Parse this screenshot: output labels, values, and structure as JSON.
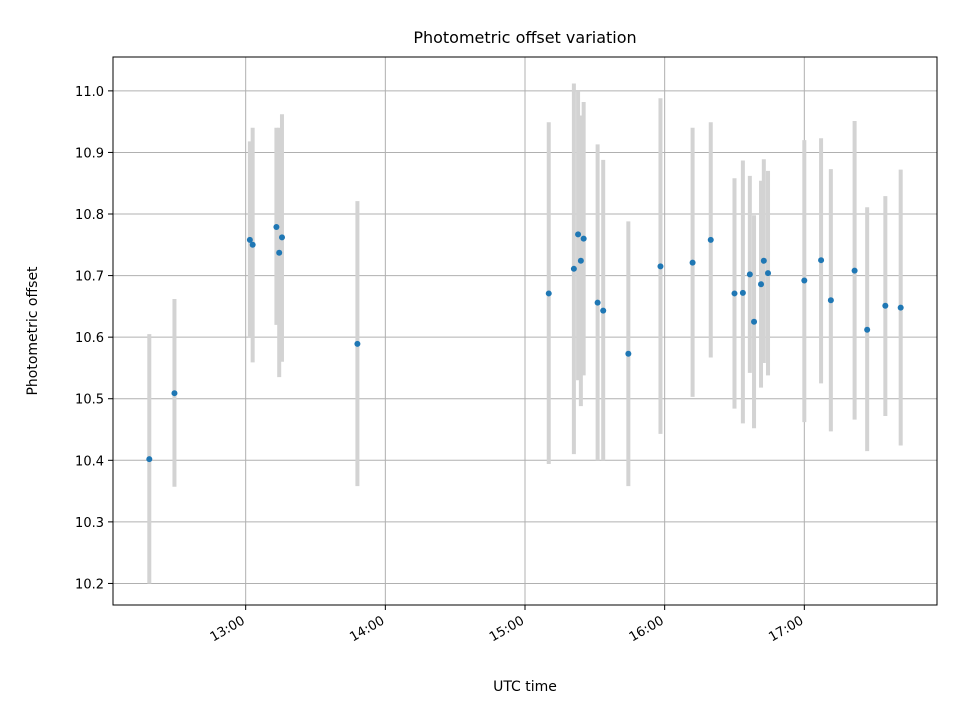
{
  "chart_data": {
    "type": "scatter",
    "title": "Photometric offset variation",
    "xlabel": "UTC time",
    "ylabel": "Photometric offset",
    "grid": true,
    "x_unit": "hours (UTC)",
    "xlim": [
      12.05,
      17.95
    ],
    "ylim": [
      10.165,
      11.055
    ],
    "xticks": [
      {
        "value": 13,
        "label": "13:00"
      },
      {
        "value": 14,
        "label": "14:00"
      },
      {
        "value": 15,
        "label": "15:00"
      },
      {
        "value": 16,
        "label": "16:00"
      },
      {
        "value": 17,
        "label": "17:00"
      }
    ],
    "yticks": [
      {
        "value": 10.2,
        "label": "10.2"
      },
      {
        "value": 10.3,
        "label": "10.3"
      },
      {
        "value": 10.4,
        "label": "10.4"
      },
      {
        "value": 10.5,
        "label": "10.5"
      },
      {
        "value": 10.6,
        "label": "10.6"
      },
      {
        "value": 10.7,
        "label": "10.7"
      },
      {
        "value": 10.8,
        "label": "10.8"
      },
      {
        "value": 10.9,
        "label": "10.9"
      },
      {
        "value": 11.0,
        "label": "11.0"
      }
    ],
    "colors": {
      "point": "#1f77b4",
      "errorbar": "#d3d3d3"
    },
    "points": [
      {
        "x": 12.31,
        "y": 10.402,
        "ylo": 10.2,
        "yhi": 10.605
      },
      {
        "x": 12.49,
        "y": 10.509,
        "ylo": 10.357,
        "yhi": 10.662
      },
      {
        "x": 13.03,
        "y": 10.758,
        "ylo": 10.6,
        "yhi": 10.918
      },
      {
        "x": 13.05,
        "y": 10.75,
        "ylo": 10.559,
        "yhi": 10.94
      },
      {
        "x": 13.22,
        "y": 10.779,
        "ylo": 10.62,
        "yhi": 10.94
      },
      {
        "x": 13.24,
        "y": 10.737,
        "ylo": 10.535,
        "yhi": 10.94
      },
      {
        "x": 13.26,
        "y": 10.762,
        "ylo": 10.56,
        "yhi": 10.962
      },
      {
        "x": 13.8,
        "y": 10.589,
        "ylo": 10.358,
        "yhi": 10.821
      },
      {
        "x": 15.17,
        "y": 10.671,
        "ylo": 10.394,
        "yhi": 10.949
      },
      {
        "x": 15.35,
        "y": 10.711,
        "ylo": 10.41,
        "yhi": 11.012
      },
      {
        "x": 15.38,
        "y": 10.767,
        "ylo": 10.53,
        "yhi": 11.0
      },
      {
        "x": 15.4,
        "y": 10.724,
        "ylo": 10.488,
        "yhi": 10.96
      },
      {
        "x": 15.42,
        "y": 10.76,
        "ylo": 10.538,
        "yhi": 10.982
      },
      {
        "x": 15.52,
        "y": 10.656,
        "ylo": 10.4,
        "yhi": 10.913
      },
      {
        "x": 15.56,
        "y": 10.643,
        "ylo": 10.4,
        "yhi": 10.888
      },
      {
        "x": 15.74,
        "y": 10.573,
        "ylo": 10.358,
        "yhi": 10.788
      },
      {
        "x": 15.97,
        "y": 10.715,
        "ylo": 10.443,
        "yhi": 10.988
      },
      {
        "x": 16.2,
        "y": 10.721,
        "ylo": 10.503,
        "yhi": 10.94
      },
      {
        "x": 16.33,
        "y": 10.758,
        "ylo": 10.567,
        "yhi": 10.949
      },
      {
        "x": 16.5,
        "y": 10.671,
        "ylo": 10.484,
        "yhi": 10.858
      },
      {
        "x": 16.56,
        "y": 10.672,
        "ylo": 10.46,
        "yhi": 10.887
      },
      {
        "x": 16.61,
        "y": 10.702,
        "ylo": 10.542,
        "yhi": 10.862
      },
      {
        "x": 16.64,
        "y": 10.625,
        "ylo": 10.452,
        "yhi": 10.798
      },
      {
        "x": 16.69,
        "y": 10.686,
        "ylo": 10.518,
        "yhi": 10.854
      },
      {
        "x": 16.71,
        "y": 10.724,
        "ylo": 10.558,
        "yhi": 10.889
      },
      {
        "x": 16.74,
        "y": 10.704,
        "ylo": 10.538,
        "yhi": 10.87
      },
      {
        "x": 17.0,
        "y": 10.692,
        "ylo": 10.462,
        "yhi": 10.92
      },
      {
        "x": 17.12,
        "y": 10.725,
        "ylo": 10.525,
        "yhi": 10.923
      },
      {
        "x": 17.19,
        "y": 10.66,
        "ylo": 10.447,
        "yhi": 10.873
      },
      {
        "x": 17.36,
        "y": 10.708,
        "ylo": 10.466,
        "yhi": 10.951
      },
      {
        "x": 17.45,
        "y": 10.612,
        "ylo": 10.415,
        "yhi": 10.811
      },
      {
        "x": 17.58,
        "y": 10.651,
        "ylo": 10.472,
        "yhi": 10.829
      },
      {
        "x": 17.69,
        "y": 10.648,
        "ylo": 10.424,
        "yhi": 10.872
      }
    ]
  }
}
